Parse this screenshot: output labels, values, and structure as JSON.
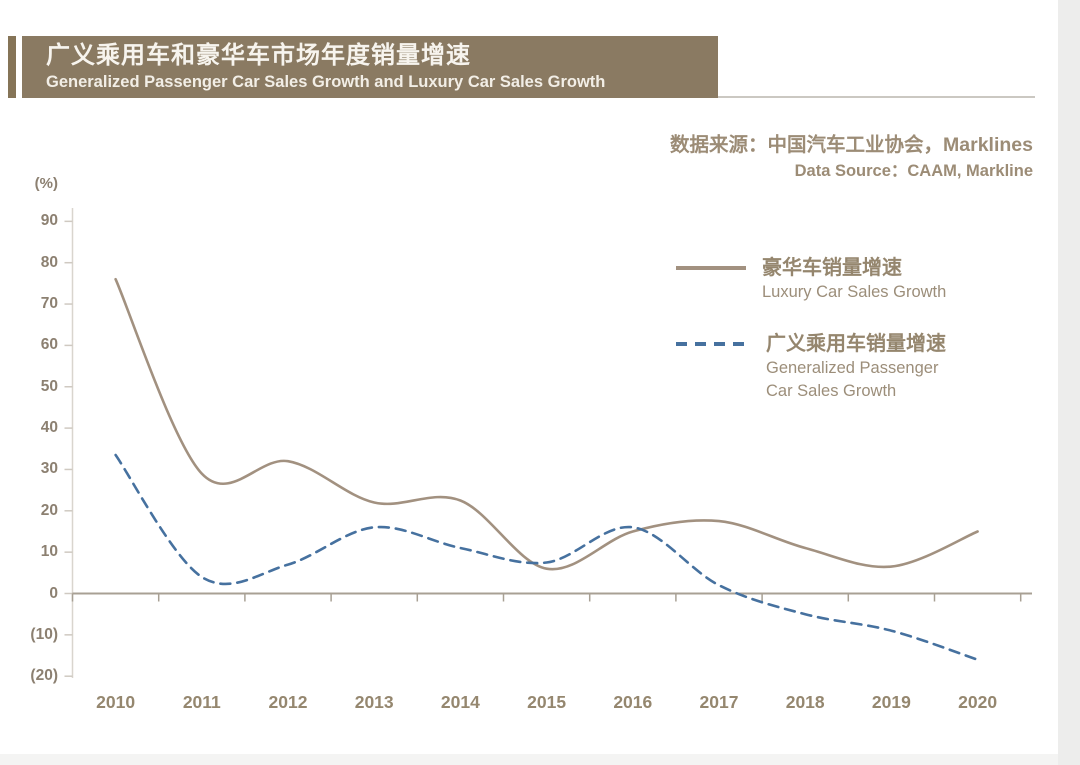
{
  "header": {
    "title_zh": "广义乘用车和豪华车市场年度销量增速",
    "title_en": "Generalized Passenger Car Sales Growth and Luxury Car Sales Growth",
    "bar_color": "#8a7a62"
  },
  "source": {
    "line_zh": "数据来源：中国汽车工业协会，Marklines",
    "line_en": "Data Source：CAAM, Markline"
  },
  "axes": {
    "unit_label": "(%)",
    "y_ticks": [
      {
        "label": "90",
        "value": 90
      },
      {
        "label": "80",
        "value": 80
      },
      {
        "label": "70",
        "value": 70
      },
      {
        "label": "60",
        "value": 60
      },
      {
        "label": "50",
        "value": 50
      },
      {
        "label": "40",
        "value": 40
      },
      {
        "label": "30",
        "value": 30
      },
      {
        "label": "20",
        "value": 20
      },
      {
        "label": "10",
        "value": 10
      },
      {
        "label": "0",
        "value": 0
      },
      {
        "label": "(10)",
        "value": -10
      },
      {
        "label": "(20)",
        "value": -20
      }
    ]
  },
  "legend": [
    {
      "label_zh": "豪华车销量增速",
      "label_en": [
        "Luxury Car Sales Growth"
      ],
      "color": "#a29180",
      "style": "solid"
    },
    {
      "label_zh": "广义乘用车销量增速",
      "label_en": [
        "Generalized Passenger",
        "Car Sales Growth"
      ],
      "color": "#46719f",
      "style": "dashed"
    }
  ],
  "chart_data": {
    "type": "line",
    "x": [
      2010,
      2011,
      2012,
      2013,
      2014,
      2015,
      2016,
      2017,
      2018,
      2019,
      2020
    ],
    "series": [
      {
        "name_zh": "豪华车销量增速",
        "name_en": "Luxury Car Sales Growth",
        "color": "#a29180",
        "line_style": "solid",
        "values": [
          76,
          29,
          32,
          22,
          22.5,
          6,
          15,
          17.5,
          11,
          6.5,
          15
        ]
      },
      {
        "name_zh": "广义乘用车销量增速",
        "name_en": "Generalized Passenger Car Sales Growth",
        "color": "#46719f",
        "line_style": "dashed",
        "values": [
          33.5,
          4,
          7,
          16,
          11,
          7.5,
          16,
          2,
          -5,
          -9,
          -16
        ]
      }
    ],
    "ylim": [
      -20,
      90
    ],
    "y_tick_step": 10,
    "unit": "%",
    "grid": false,
    "legend_position": "top-right",
    "title_zh": "广义乘用车和豪华车市场年度销量增速",
    "title_en": "Generalized Passenger Car Sales Growth and Luxury Car Sales Growth"
  }
}
